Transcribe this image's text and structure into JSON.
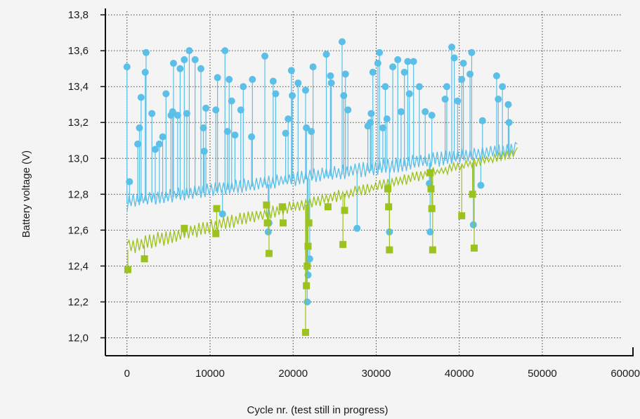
{
  "chart_data": {
    "type": "scatter",
    "xlabel": "Cycle nr. (test still in progress)",
    "ylabel": "Battery voltage (V)",
    "xlim": [
      -2600,
      61000
    ],
    "ylim": [
      11.9,
      13.82
    ],
    "x_ticks": [
      0,
      10000,
      20000,
      30000,
      40000,
      50000,
      60000
    ],
    "x_tick_labels": [
      "0",
      "10000",
      "20000",
      "30000",
      "40000",
      "50000",
      "60000"
    ],
    "y_ticks": [
      12.0,
      12.2,
      12.4,
      12.6,
      12.8,
      13.0,
      13.2,
      13.4,
      13.6,
      13.8
    ],
    "y_tick_labels": [
      "12,0",
      "12,2",
      "12,4",
      "12,6",
      "12,8",
      "13,0",
      "13,2",
      "13,4",
      "13,6",
      "13,8"
    ],
    "grid": "dotted",
    "legend": "none",
    "colors": {
      "blue": "#5bbfe8",
      "green": "#9cc21f"
    },
    "series": [
      {
        "color": "blue",
        "marker": "circle",
        "line_start": [
          0,
          12.7
        ],
        "line_end": [
          47000,
          13.08
        ],
        "baseline_min": [
          12.72,
          13.01
        ],
        "baseline_max": [
          12.8,
          13.1
        ],
        "x": [
          0,
          300,
          1300,
          1500,
          1700,
          2200,
          2300,
          3000,
          3400,
          3900,
          4300,
          4700,
          5300,
          5500,
          5600,
          6100,
          6400,
          6900,
          7200,
          7500,
          8200,
          8900,
          9200,
          9300,
          9500,
          10700,
          10900,
          11500,
          11800,
          12100,
          12300,
          12600,
          13000,
          13700,
          14000,
          15000,
          15100,
          16600,
          17000,
          17100,
          17600,
          17900,
          19100,
          19400,
          19800,
          19900,
          20600,
          21500,
          21600,
          21700,
          21800,
          22000,
          22200,
          22400,
          24000,
          24500,
          24600,
          25900,
          26100,
          26300,
          26600,
          27700,
          29000,
          29300,
          29400,
          29600,
          30200,
          30400,
          30800,
          31100,
          31300,
          31600,
          32000,
          32600,
          33000,
          33400,
          33800,
          34000,
          34500,
          35200,
          35900,
          36400,
          36500,
          36700,
          38300,
          38500,
          39100,
          39400,
          39800,
          40300,
          40500,
          41300,
          41500,
          41700,
          42600,
          42800,
          44500,
          44700,
          45200,
          45900,
          46000
        ],
        "y": [
          13.51,
          12.87,
          13.08,
          13.17,
          13.34,
          13.48,
          13.59,
          13.25,
          13.05,
          13.08,
          13.12,
          13.36,
          13.24,
          13.26,
          13.53,
          13.24,
          13.5,
          13.55,
          13.25,
          13.6,
          13.55,
          13.5,
          13.17,
          13.04,
          13.28,
          13.27,
          13.45,
          12.69,
          13.6,
          13.15,
          13.44,
          13.32,
          13.13,
          13.27,
          13.4,
          13.12,
          13.44,
          13.57,
          12.59,
          12.64,
          13.43,
          13.36,
          13.14,
          13.22,
          13.49,
          13.35,
          13.42,
          13.38,
          13.17,
          12.2,
          12.35,
          12.44,
          13.15,
          13.51,
          13.58,
          13.46,
          13.42,
          13.65,
          13.35,
          13.47,
          13.27,
          12.61,
          13.18,
          13.2,
          13.25,
          13.48,
          13.53,
          13.59,
          13.17,
          13.4,
          13.22,
          12.59,
          13.51,
          13.55,
          13.26,
          13.48,
          13.54,
          13.36,
          13.54,
          13.4,
          13.26,
          12.86,
          12.59,
          13.24,
          13.33,
          13.4,
          13.62,
          13.56,
          13.32,
          13.44,
          13.53,
          13.47,
          13.59,
          12.63,
          12.85,
          13.21,
          13.46,
          13.33,
          13.4,
          13.3,
          13.2
        ]
      },
      {
        "color": "green",
        "marker": "square",
        "line_start": [
          0,
          12.52
        ],
        "line_end": [
          47000,
          13.06
        ],
        "baseline_min": [
          12.46,
          13.01
        ],
        "baseline_max": [
          12.55,
          13.06
        ],
        "x": [
          100,
          2100,
          6900,
          10700,
          10800,
          16800,
          16900,
          17100,
          18700,
          18800,
          21500,
          21600,
          21700,
          21800,
          21900,
          24200,
          26000,
          26200,
          31400,
          31500,
          31600,
          36500,
          36600,
          36700,
          36800,
          40300,
          41600,
          41800
        ],
        "y": [
          12.38,
          12.44,
          12.61,
          12.58,
          12.72,
          12.74,
          12.64,
          12.47,
          12.73,
          12.64,
          12.03,
          12.29,
          12.4,
          12.51,
          12.64,
          12.73,
          12.52,
          12.71,
          12.83,
          12.73,
          12.49,
          12.92,
          12.83,
          12.72,
          12.49,
          12.68,
          12.8,
          12.5
        ]
      }
    ]
  }
}
